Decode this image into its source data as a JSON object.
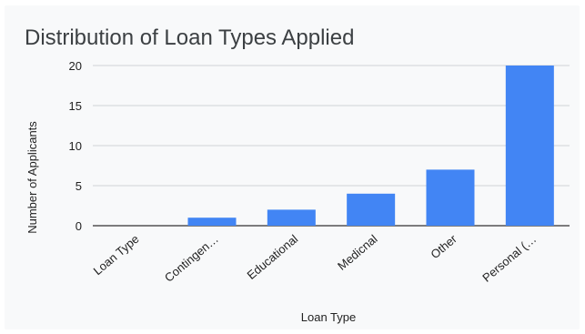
{
  "chart_data": {
    "type": "bar",
    "title": "Distribution of Loan Types Applied",
    "xlabel": "Loan Type",
    "ylabel": "Number of Applicants",
    "categories": [
      "Loan Type",
      "Contingen…",
      "Educational",
      "Medicnal",
      "Other",
      "Personal (…"
    ],
    "values": [
      0,
      1,
      2,
      4,
      7,
      20
    ],
    "ylim": [
      0,
      20
    ],
    "yticks": [
      0,
      5,
      10,
      15,
      20
    ],
    "grid": true,
    "legend": "none",
    "bar_color": "#4285f4"
  }
}
